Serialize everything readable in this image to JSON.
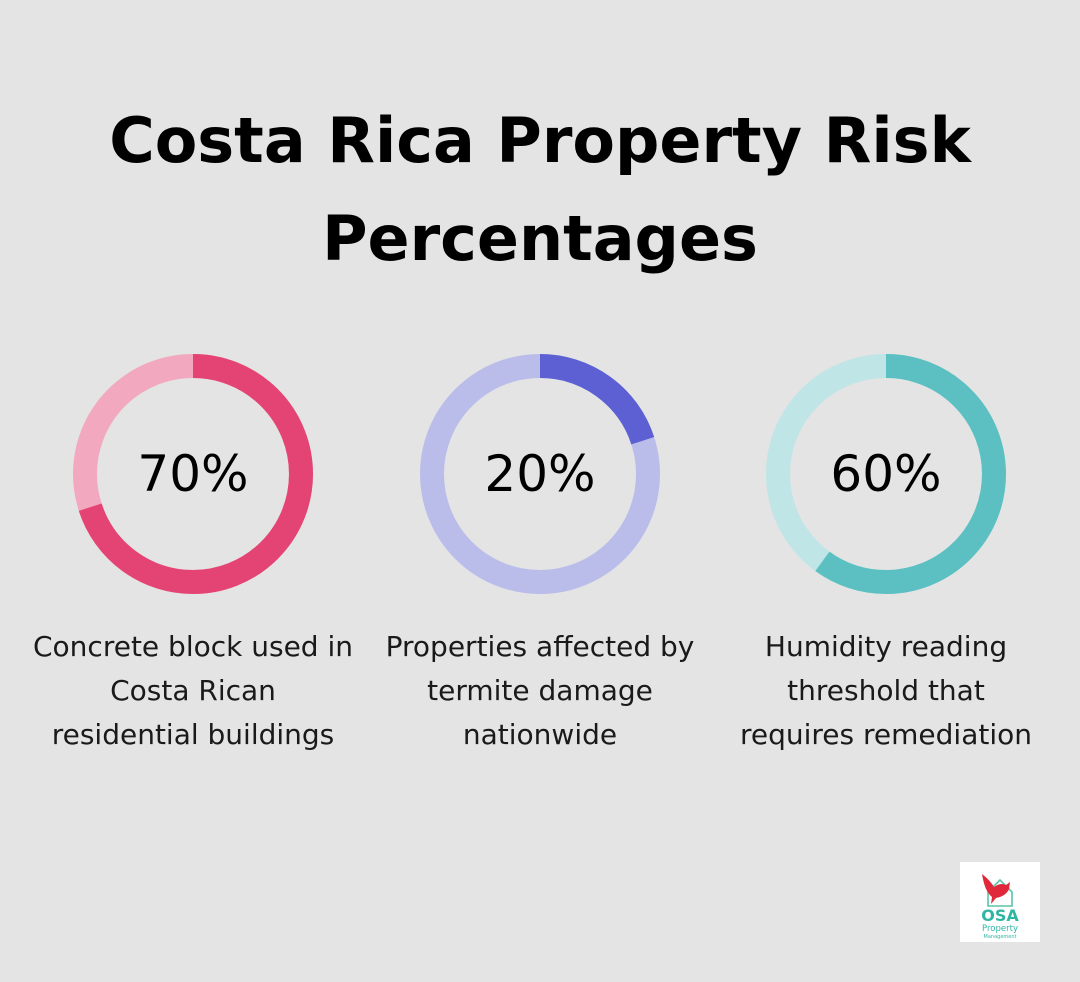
{
  "title": "Costa Rica Property Risk Percentages",
  "chart_data": [
    {
      "type": "pie",
      "value": 70,
      "label": "70%",
      "caption": "Concrete block used in Costa Rican residential buildings",
      "colors": {
        "filled": "#e44474",
        "track": "#f2a9c0"
      }
    },
    {
      "type": "pie",
      "value": 20,
      "label": "20%",
      "caption": "Properties affected by termite damage nationwide",
      "colors": {
        "filled": "#5c60d3",
        "track": "#babdea"
      }
    },
    {
      "type": "pie",
      "value": 60,
      "label": "60%",
      "caption": "Humidity reading threshold that requires remediation",
      "colors": {
        "filled": "#5cbfc1",
        "track": "#bfe5e6"
      }
    }
  ],
  "logo": {
    "wordmark": "OSA",
    "line1": "Property",
    "line2": "Management",
    "icon": "bird-house-icon",
    "colors": {
      "bird": "#e0283a",
      "text": "#2fb6a3",
      "house": "#58c3a6"
    }
  }
}
